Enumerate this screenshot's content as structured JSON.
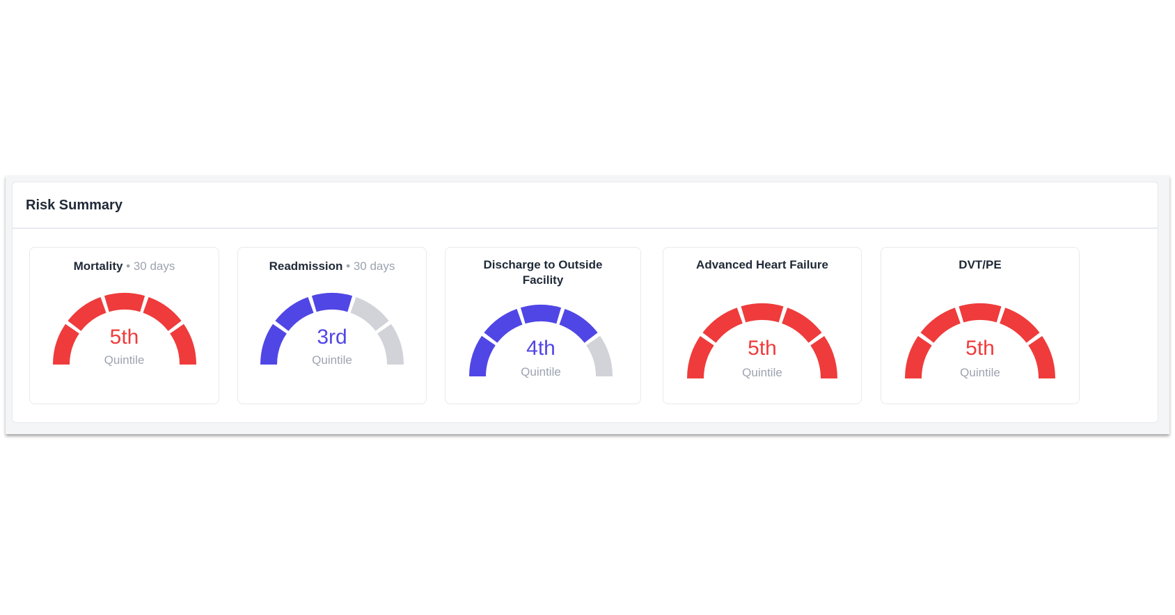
{
  "panel": {
    "title": "Risk Summary"
  },
  "colors": {
    "high": "#ef3b3b",
    "mid": "#5046e5",
    "empty": "#d1d3d8"
  },
  "cards": [
    {
      "title": "Mortality",
      "separator": " • ",
      "subtitle": "30 days",
      "value": "5th",
      "label": "Quintile",
      "quintile": 5,
      "color": "#ef3b3b"
    },
    {
      "title": "Readmission",
      "separator": " • ",
      "subtitle": "30 days",
      "value": "3rd",
      "label": "Quintile",
      "quintile": 3,
      "color": "#5046e5"
    },
    {
      "title": "Discharge to Outside Facility",
      "value": "4th",
      "label": "Quintile",
      "quintile": 4,
      "color": "#5046e5"
    },
    {
      "title": "Advanced Heart Failure",
      "value": "5th",
      "label": "Quintile",
      "quintile": 5,
      "color": "#ef3b3b"
    },
    {
      "title": "DVT/PE",
      "value": "5th",
      "label": "Quintile",
      "quintile": 5,
      "color": "#ef3b3b"
    }
  ]
}
